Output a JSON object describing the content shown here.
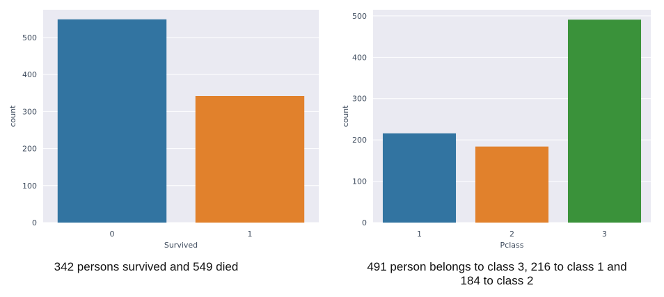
{
  "colors": {
    "plot_background": "#eaeaf2",
    "grid": "#ffffff",
    "series": [
      "#3274a1",
      "#e1812c",
      "#3a923a"
    ]
  },
  "chart_data": [
    {
      "type": "bar",
      "categories": [
        "0",
        "1"
      ],
      "values": [
        549,
        342
      ],
      "xlabel": "Survived",
      "ylabel": "count",
      "ylim": [
        0,
        575
      ],
      "yticks": [
        0,
        100,
        200,
        300,
        400,
        500
      ],
      "grid": true
    },
    {
      "type": "bar",
      "categories": [
        "1",
        "2",
        "3"
      ],
      "values": [
        216,
        184,
        491
      ],
      "xlabel": "Pclass",
      "ylabel": "count",
      "ylim": [
        0,
        515
      ],
      "yticks": [
        0,
        100,
        200,
        300,
        400,
        500
      ],
      "grid": true
    }
  ],
  "captions": {
    "left": "342 persons survived and 549 died",
    "right_line1": "491 person belongs to class 3,  216 to class 1 and",
    "right_line2": "184 to class 2"
  }
}
